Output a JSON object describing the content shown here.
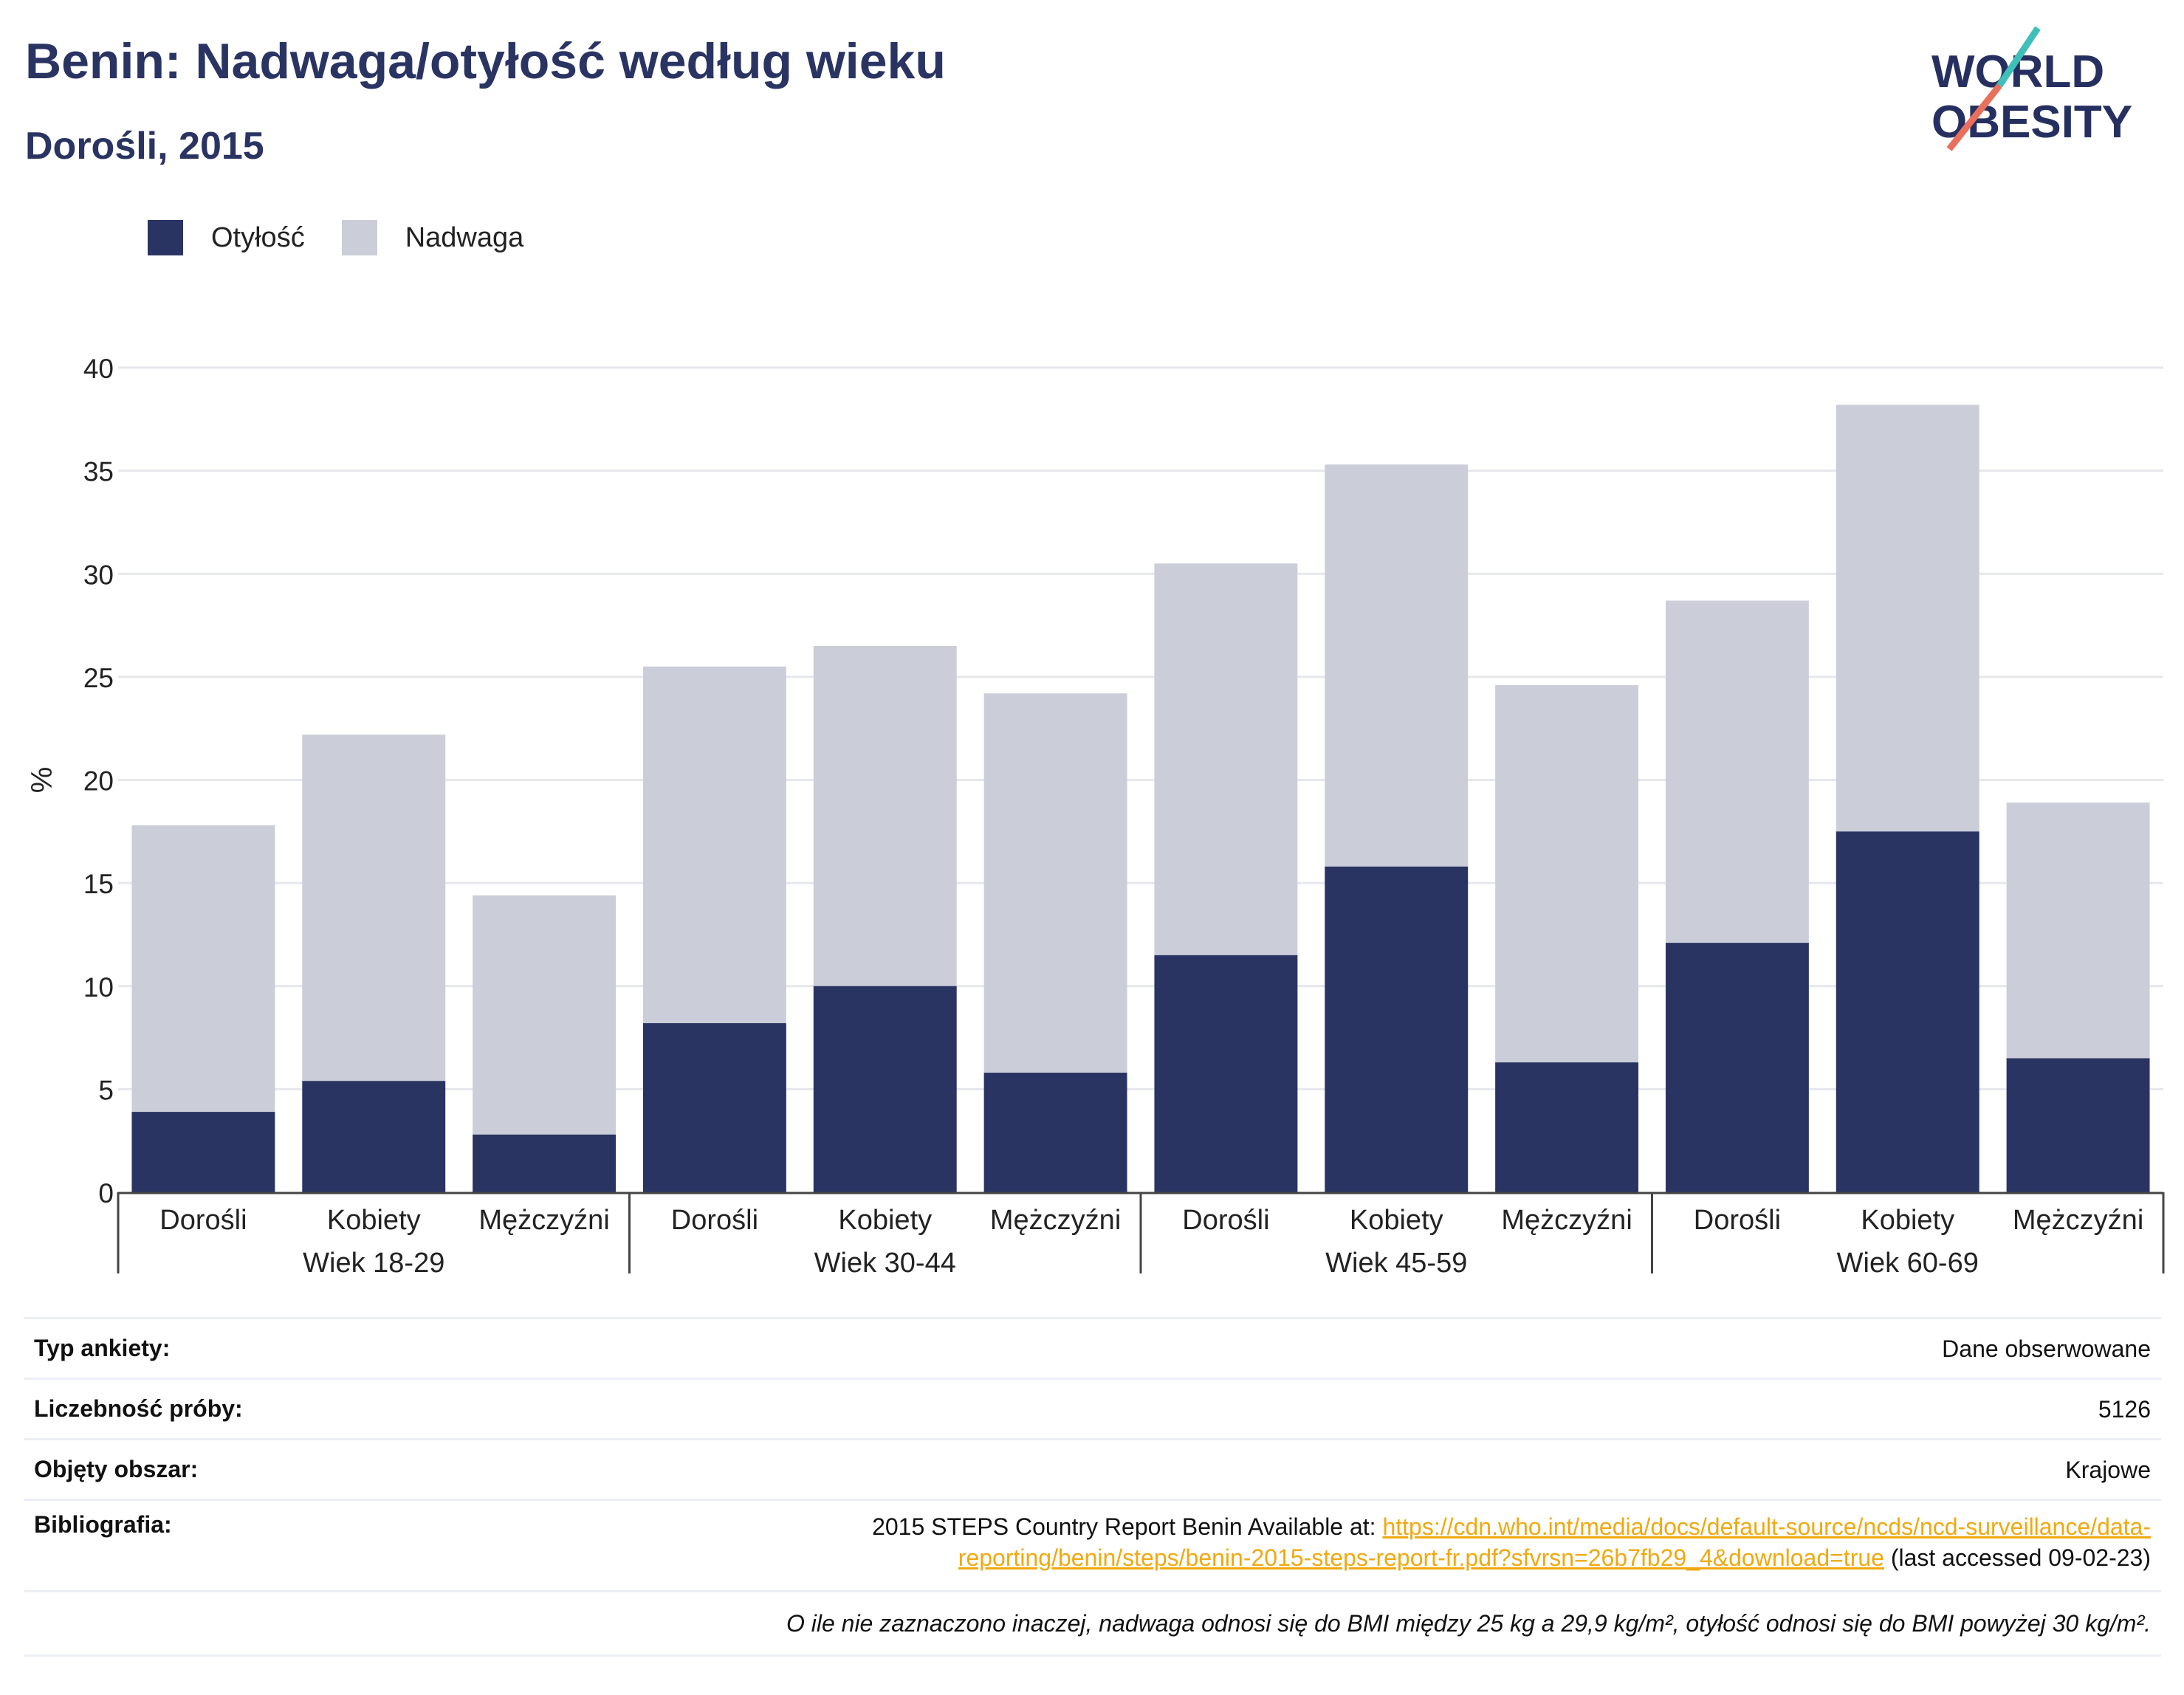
{
  "header": {
    "title": "Benin: Nadwaga/otyłość według wieku",
    "subtitle": "Dorośli, 2015"
  },
  "logo": {
    "line1": "WORLD",
    "line2": "OBESITY",
    "icon": "world-obesity-logo"
  },
  "legend": [
    {
      "label": "Otyłość",
      "color": "#293462"
    },
    {
      "label": "Nadwaga",
      "color": "#cbcdd9"
    }
  ],
  "colors": {
    "obesity": "#293462",
    "overweight": "#cbcdd9",
    "grid": "#e6e7ee",
    "axis": "#444444"
  },
  "chart_data": {
    "type": "bar",
    "stacked": true,
    "ylabel": "%",
    "ylim": [
      0,
      40
    ],
    "yticks": [
      0,
      5,
      10,
      15,
      20,
      25,
      30,
      35,
      40
    ],
    "grid": true,
    "legend_position": "top-left",
    "groups": [
      "Wiek 18-29",
      "Wiek 30-44",
      "Wiek 45-59",
      "Wiek 60-69"
    ],
    "categories": [
      "Dorośli",
      "Kobiety",
      "Mężczyźni",
      "Dorośli",
      "Kobiety",
      "Mężczyźni",
      "Dorośli",
      "Kobiety",
      "Mężczyźni",
      "Dorośli",
      "Kobiety",
      "Mężczyźni"
    ],
    "series": [
      {
        "name": "Otyłość",
        "values": [
          3.9,
          5.4,
          2.8,
          8.2,
          10.0,
          5.8,
          11.5,
          15.8,
          6.3,
          12.1,
          17.5,
          6.5
        ]
      },
      {
        "name": "Nadwaga",
        "values": [
          13.9,
          16.8,
          11.6,
          17.3,
          16.5,
          18.4,
          19.0,
          19.5,
          18.3,
          16.6,
          20.7,
          12.4
        ]
      }
    ]
  },
  "info": {
    "rows": [
      {
        "key": "Typ ankiety:",
        "value": "Dane obserwowane"
      },
      {
        "key": "Liczebność próby:",
        "value": "5126"
      },
      {
        "key": "Objęty obszar:",
        "value": "Krajowe"
      }
    ],
    "bibliography": {
      "key": "Bibliografia:",
      "prefix": "2015 STEPS Country Report Benin Available at: ",
      "link_line1": "https://cdn.who.int/media/docs/default-source/ncds/ncd-surveillance/data-",
      "link_line2": "reporting/benin/steps/benin-2015-steps-report-fr.pdf?sfvrsn=26b7fb29_4&download=true",
      "suffix": " (last accessed 09-02-23)"
    },
    "footnote": "O ile nie zaznaczono inaczej, nadwaga odnosi się do BMI między 25 kg a 29,9 kg/m², otyłość odnosi się do BMI powyżej 30 kg/m²."
  }
}
